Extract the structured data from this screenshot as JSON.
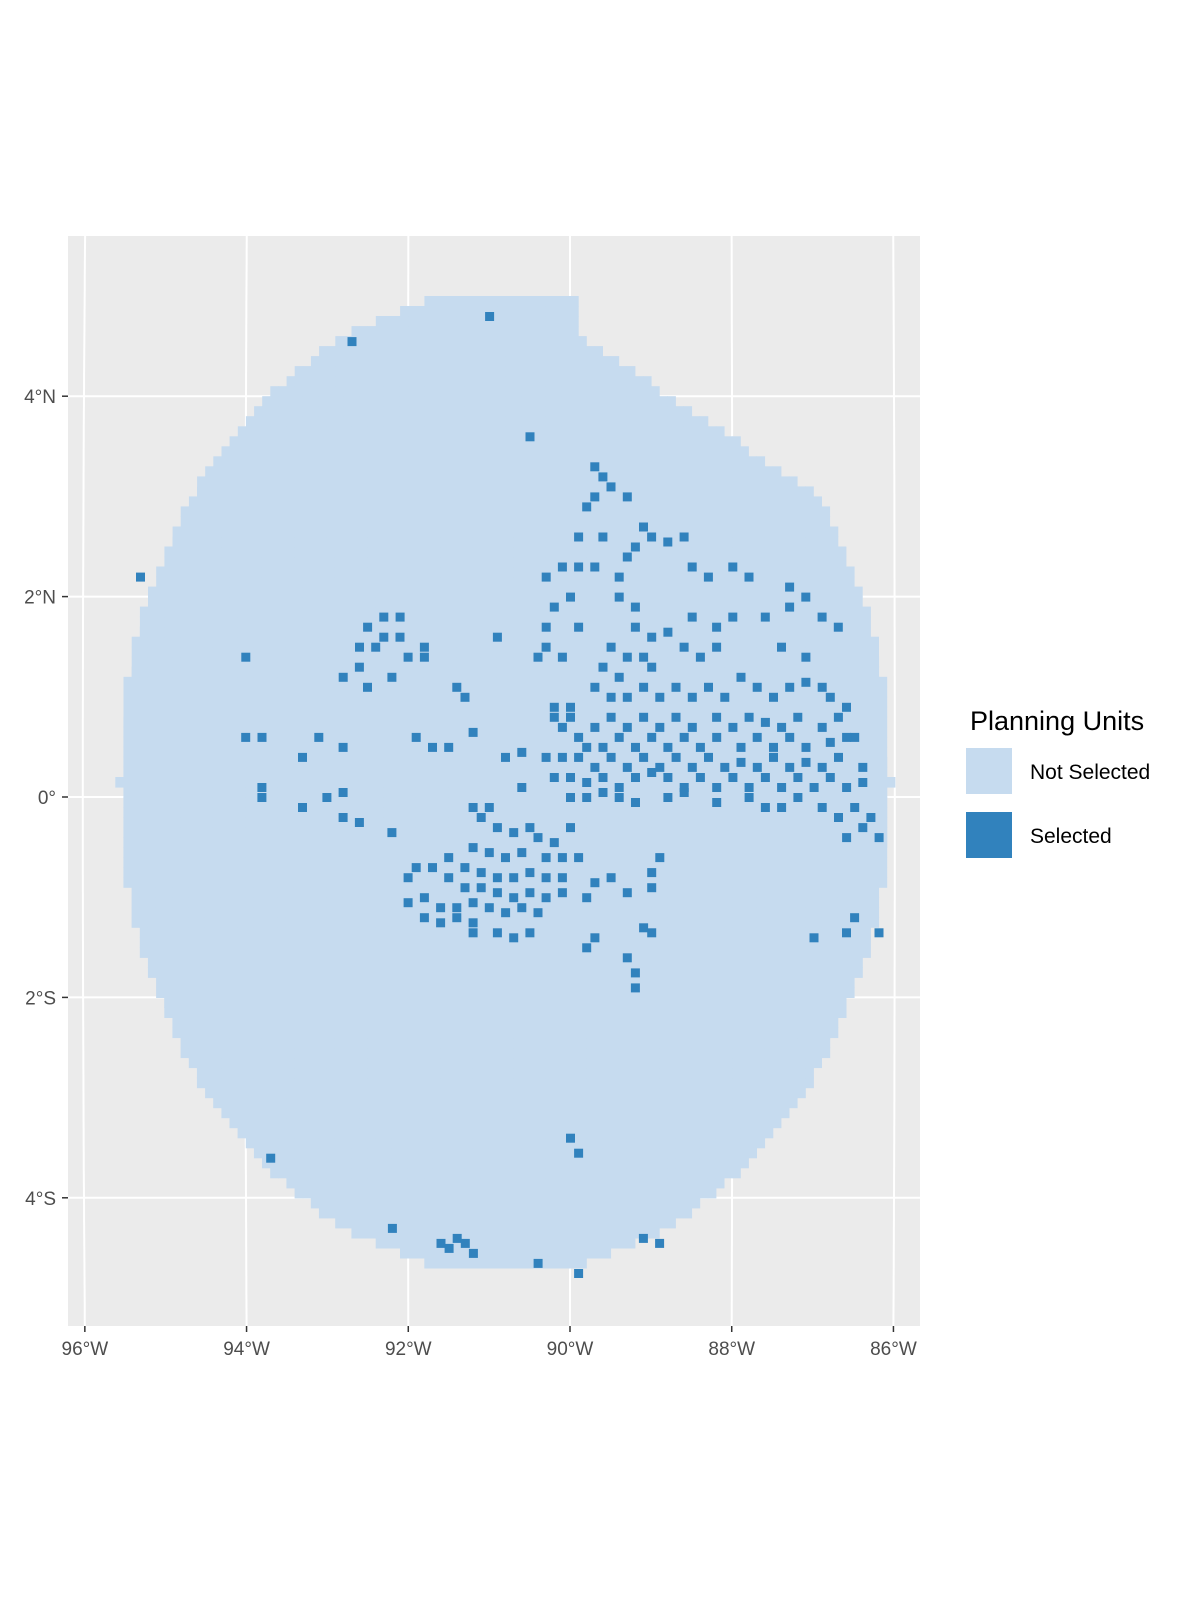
{
  "map": {
    "panel_background": "#ebebeb",
    "gridline_color": "#ffffff",
    "projection": "sinusoidal-like (meridians tilted)",
    "x_axis": {
      "ticks": [
        {
          "value": -96,
          "label": "96°W"
        },
        {
          "value": -94,
          "label": "94°W"
        },
        {
          "value": -92,
          "label": "92°W"
        },
        {
          "value": -90,
          "label": "90°W"
        },
        {
          "value": -88,
          "label": "88°W"
        },
        {
          "value": -86,
          "label": "86°W"
        }
      ]
    },
    "y_axis": {
      "ticks": [
        {
          "value": 4,
          "label": "4°N"
        },
        {
          "value": 2,
          "label": "2°N"
        },
        {
          "value": 0,
          "label": "0°"
        },
        {
          "value": -2,
          "label": "2°S"
        },
        {
          "value": -4,
          "label": "4°S"
        }
      ]
    },
    "study_area": {
      "description": "Galapagos planning region (roughly oval grid of planning units)",
      "lon_range": [
        -95.6,
        -86.1
      ],
      "lat_range": [
        -4.8,
        5.0
      ]
    }
  },
  "legend": {
    "title": "Planning Units",
    "items": [
      {
        "label": "Not Selected",
        "color": "#c6dbef"
      },
      {
        "label": "Selected",
        "color": "#3182bd"
      }
    ]
  },
  "selected_units": [
    [
      -91.0,
      4.8
    ],
    [
      -92.7,
      4.55
    ],
    [
      -90.5,
      3.6
    ],
    [
      -95.3,
      2.2
    ],
    [
      -94.0,
      1.4
    ],
    [
      -89.7,
      3.3
    ],
    [
      -89.6,
      3.2
    ],
    [
      -89.5,
      3.1
    ],
    [
      -89.3,
      3.0
    ],
    [
      -89.7,
      3.0
    ],
    [
      -89.8,
      2.9
    ],
    [
      -89.1,
      2.7
    ],
    [
      -89.0,
      2.6
    ],
    [
      -89.2,
      2.5
    ],
    [
      -88.8,
      2.55
    ],
    [
      -88.6,
      2.6
    ],
    [
      -89.9,
      2.6
    ],
    [
      -89.6,
      2.6
    ],
    [
      -89.3,
      2.4
    ],
    [
      -89.9,
      2.3
    ],
    [
      -90.1,
      2.3
    ],
    [
      -90.3,
      2.2
    ],
    [
      -89.7,
      2.3
    ],
    [
      -89.4,
      2.2
    ],
    [
      -89.4,
      2.0
    ],
    [
      -89.2,
      1.9
    ],
    [
      -88.5,
      2.3
    ],
    [
      -88.3,
      2.2
    ],
    [
      -88.0,
      2.3
    ],
    [
      -87.8,
      2.2
    ],
    [
      -87.3,
      2.1
    ],
    [
      -87.3,
      1.9
    ],
    [
      -87.1,
      2.0
    ],
    [
      -86.9,
      1.8
    ],
    [
      -86.7,
      1.7
    ],
    [
      -90.2,
      1.9
    ],
    [
      -90.0,
      2.0
    ],
    [
      -89.9,
      1.7
    ],
    [
      -90.3,
      1.7
    ],
    [
      -90.3,
      1.5
    ],
    [
      -90.4,
      1.4
    ],
    [
      -90.1,
      1.4
    ],
    [
      -89.2,
      1.7
    ],
    [
      -89.0,
      1.6
    ],
    [
      -88.8,
      1.65
    ],
    [
      -88.5,
      1.8
    ],
    [
      -88.2,
      1.7
    ],
    [
      -88.0,
      1.8
    ],
    [
      -87.6,
      1.8
    ],
    [
      -87.4,
      1.5
    ],
    [
      -87.1,
      1.4
    ],
    [
      -88.6,
      1.5
    ],
    [
      -88.4,
      1.4
    ],
    [
      -88.2,
      1.5
    ],
    [
      -89.5,
      1.5
    ],
    [
      -89.3,
      1.4
    ],
    [
      -89.1,
      1.4
    ],
    [
      -89.0,
      1.3
    ],
    [
      -89.4,
      1.2
    ],
    [
      -89.6,
      1.3
    ],
    [
      -89.7,
      1.1
    ],
    [
      -89.5,
      1.0
    ],
    [
      -89.3,
      1.0
    ],
    [
      -89.1,
      1.1
    ],
    [
      -88.9,
      1.0
    ],
    [
      -88.7,
      1.1
    ],
    [
      -88.5,
      1.0
    ],
    [
      -88.3,
      1.1
    ],
    [
      -88.1,
      1.0
    ],
    [
      -87.9,
      1.2
    ],
    [
      -87.7,
      1.1
    ],
    [
      -87.5,
      1.0
    ],
    [
      -87.3,
      1.1
    ],
    [
      -87.1,
      1.15
    ],
    [
      -86.9,
      1.1
    ],
    [
      -86.8,
      1.0
    ],
    [
      -86.6,
      0.9
    ],
    [
      -90.2,
      0.9
    ],
    [
      -90.0,
      0.9
    ],
    [
      -90.2,
      0.8
    ],
    [
      -90.0,
      0.8
    ],
    [
      -90.1,
      0.7
    ],
    [
      -89.9,
      0.6
    ],
    [
      -89.7,
      0.7
    ],
    [
      -89.5,
      0.8
    ],
    [
      -89.3,
      0.7
    ],
    [
      -89.1,
      0.8
    ],
    [
      -88.9,
      0.7
    ],
    [
      -88.7,
      0.8
    ],
    [
      -88.5,
      0.7
    ],
    [
      -88.2,
      0.8
    ],
    [
      -88.0,
      0.7
    ],
    [
      -87.8,
      0.8
    ],
    [
      -87.6,
      0.75
    ],
    [
      -87.4,
      0.7
    ],
    [
      -87.2,
      0.8
    ],
    [
      -86.9,
      0.7
    ],
    [
      -86.7,
      0.8
    ],
    [
      -86.5,
      0.6
    ],
    [
      -89.8,
      0.5
    ],
    [
      -89.6,
      0.5
    ],
    [
      -89.4,
      0.6
    ],
    [
      -89.2,
      0.5
    ],
    [
      -89.0,
      0.6
    ],
    [
      -88.8,
      0.5
    ],
    [
      -88.6,
      0.6
    ],
    [
      -88.4,
      0.5
    ],
    [
      -88.2,
      0.6
    ],
    [
      -87.9,
      0.5
    ],
    [
      -87.7,
      0.6
    ],
    [
      -87.5,
      0.5
    ],
    [
      -87.3,
      0.6
    ],
    [
      -87.1,
      0.5
    ],
    [
      -86.8,
      0.55
    ],
    [
      -86.6,
      0.6
    ],
    [
      -90.3,
      0.4
    ],
    [
      -90.1,
      0.4
    ],
    [
      -89.9,
      0.4
    ],
    [
      -89.7,
      0.3
    ],
    [
      -89.5,
      0.4
    ],
    [
      -89.3,
      0.3
    ],
    [
      -89.1,
      0.4
    ],
    [
      -88.9,
      0.3
    ],
    [
      -88.7,
      0.4
    ],
    [
      -88.5,
      0.3
    ],
    [
      -88.3,
      0.4
    ],
    [
      -88.1,
      0.3
    ],
    [
      -87.9,
      0.35
    ],
    [
      -87.7,
      0.3
    ],
    [
      -87.5,
      0.4
    ],
    [
      -87.3,
      0.3
    ],
    [
      -87.1,
      0.35
    ],
    [
      -86.9,
      0.3
    ],
    [
      -86.7,
      0.4
    ],
    [
      -86.4,
      0.3
    ],
    [
      -90.2,
      0.2
    ],
    [
      -90.0,
      0.2
    ],
    [
      -89.8,
      0.15
    ],
    [
      -89.6,
      0.2
    ],
    [
      -89.4,
      0.1
    ],
    [
      -89.2,
      0.2
    ],
    [
      -89.0,
      0.25
    ],
    [
      -88.8,
      0.2
    ],
    [
      -88.6,
      0.1
    ],
    [
      -88.4,
      0.2
    ],
    [
      -88.2,
      0.1
    ],
    [
      -88.0,
      0.2
    ],
    [
      -87.8,
      0.1
    ],
    [
      -87.6,
      0.2
    ],
    [
      -87.4,
      0.1
    ],
    [
      -87.2,
      0.2
    ],
    [
      -87.0,
      0.1
    ],
    [
      -86.8,
      0.2
    ],
    [
      -86.6,
      0.1
    ],
    [
      -86.4,
      0.15
    ],
    [
      -90.0,
      0.0
    ],
    [
      -89.8,
      0.0
    ],
    [
      -89.6,
      0.05
    ],
    [
      -89.4,
      0.0
    ],
    [
      -89.2,
      -0.05
    ],
    [
      -88.8,
      0.0
    ],
    [
      -88.6,
      0.05
    ],
    [
      -88.2,
      -0.05
    ],
    [
      -87.8,
      0.0
    ],
    [
      -87.6,
      -0.1
    ],
    [
      -87.4,
      -0.1
    ],
    [
      -87.2,
      0.0
    ],
    [
      -86.9,
      -0.1
    ],
    [
      -86.7,
      -0.2
    ],
    [
      -86.5,
      -0.1
    ],
    [
      -86.4,
      -0.3
    ],
    [
      -86.3,
      -0.2
    ],
    [
      -86.6,
      -0.4
    ],
    [
      -86.2,
      -0.4
    ],
    [
      -92.3,
      1.8
    ],
    [
      -92.1,
      1.8
    ],
    [
      -92.5,
      1.7
    ],
    [
      -92.3,
      1.6
    ],
    [
      -92.1,
      1.6
    ],
    [
      -92.0,
      1.4
    ],
    [
      -92.4,
      1.5
    ],
    [
      -92.6,
      1.5
    ],
    [
      -92.8,
      1.2
    ],
    [
      -92.6,
      1.3
    ],
    [
      -92.5,
      1.1
    ],
    [
      -92.2,
      1.2
    ],
    [
      -91.8,
      1.4
    ],
    [
      -91.8,
      1.5
    ],
    [
      -91.4,
      1.1
    ],
    [
      -91.3,
      1.0
    ],
    [
      -90.9,
      1.6
    ],
    [
      -94.0,
      0.6
    ],
    [
      -93.8,
      0.6
    ],
    [
      -93.1,
      0.6
    ],
    [
      -93.3,
      0.4
    ],
    [
      -92.8,
      0.5
    ],
    [
      -93.8,
      0.1
    ],
    [
      -93.8,
      0.0
    ],
    [
      -93.3,
      -0.1
    ],
    [
      -93.0,
      0.0
    ],
    [
      -92.8,
      0.05
    ],
    [
      -92.8,
      -0.2
    ],
    [
      -92.6,
      -0.25
    ],
    [
      -91.9,
      0.6
    ],
    [
      -91.7,
      0.5
    ],
    [
      -91.5,
      0.5
    ],
    [
      -91.2,
      0.65
    ],
    [
      -90.8,
      0.4
    ],
    [
      -90.6,
      0.45
    ],
    [
      -90.6,
      0.1
    ],
    [
      -92.2,
      -0.35
    ],
    [
      -91.2,
      -0.1
    ],
    [
      -91.0,
      -0.1
    ],
    [
      -91.1,
      -0.2
    ],
    [
      -90.9,
      -0.3
    ],
    [
      -90.7,
      -0.35
    ],
    [
      -90.5,
      -0.3
    ],
    [
      -90.4,
      -0.4
    ],
    [
      -90.2,
      -0.45
    ],
    [
      -90.0,
      -0.3
    ],
    [
      -91.2,
      -0.5
    ],
    [
      -91.0,
      -0.55
    ],
    [
      -90.8,
      -0.6
    ],
    [
      -90.6,
      -0.55
    ],
    [
      -90.3,
      -0.6
    ],
    [
      -90.1,
      -0.6
    ],
    [
      -89.9,
      -0.6
    ],
    [
      -91.5,
      -0.6
    ],
    [
      -91.3,
      -0.7
    ],
    [
      -91.1,
      -0.75
    ],
    [
      -90.9,
      -0.8
    ],
    [
      -90.7,
      -0.8
    ],
    [
      -90.5,
      -0.75
    ],
    [
      -90.3,
      -0.8
    ],
    [
      -90.1,
      -0.8
    ],
    [
      -91.9,
      -0.7
    ],
    [
      -91.7,
      -0.7
    ],
    [
      -92.0,
      -0.8
    ],
    [
      -91.5,
      -0.8
    ],
    [
      -91.3,
      -0.9
    ],
    [
      -91.1,
      -0.9
    ],
    [
      -90.9,
      -0.95
    ],
    [
      -90.7,
      -1.0
    ],
    [
      -90.5,
      -0.95
    ],
    [
      -90.3,
      -1.0
    ],
    [
      -90.1,
      -0.95
    ],
    [
      -92.0,
      -1.05
    ],
    [
      -91.8,
      -1.0
    ],
    [
      -91.6,
      -1.1
    ],
    [
      -91.4,
      -1.1
    ],
    [
      -91.2,
      -1.05
    ],
    [
      -91.0,
      -1.1
    ],
    [
      -90.8,
      -1.15
    ],
    [
      -90.6,
      -1.1
    ],
    [
      -90.4,
      -1.15
    ],
    [
      -91.6,
      -1.25
    ],
    [
      -91.4,
      -1.2
    ],
    [
      -91.2,
      -1.25
    ],
    [
      -91.8,
      -1.2
    ],
    [
      -91.2,
      -1.35
    ],
    [
      -90.9,
      -1.35
    ],
    [
      -90.7,
      -1.4
    ],
    [
      -90.5,
      -1.35
    ],
    [
      -89.5,
      -0.8
    ],
    [
      -89.7,
      -0.85
    ],
    [
      -89.8,
      -1.0
    ],
    [
      -89.3,
      -0.95
    ],
    [
      -88.9,
      -0.6
    ],
    [
      -89.0,
      -0.75
    ],
    [
      -89.0,
      -0.9
    ],
    [
      -89.7,
      -1.4
    ],
    [
      -89.8,
      -1.5
    ],
    [
      -89.1,
      -1.3
    ],
    [
      -89.0,
      -1.35
    ],
    [
      -89.3,
      -1.6
    ],
    [
      -89.2,
      -1.75
    ],
    [
      -89.2,
      -1.9
    ],
    [
      -87.0,
      -1.4
    ],
    [
      -86.6,
      -1.35
    ],
    [
      -86.5,
      -1.2
    ],
    [
      -86.2,
      -1.35
    ],
    [
      -90.0,
      -3.4
    ],
    [
      -89.9,
      -3.55
    ],
    [
      -93.7,
      -3.6
    ],
    [
      -92.2,
      -4.3
    ],
    [
      -91.6,
      -4.45
    ],
    [
      -91.4,
      -4.4
    ],
    [
      -91.3,
      -4.45
    ],
    [
      -91.2,
      -4.55
    ],
    [
      -91.5,
      -4.5
    ],
    [
      -89.1,
      -4.4
    ],
    [
      -88.9,
      -4.45
    ],
    [
      -90.4,
      -4.65
    ],
    [
      -89.9,
      -4.75
    ]
  ]
}
